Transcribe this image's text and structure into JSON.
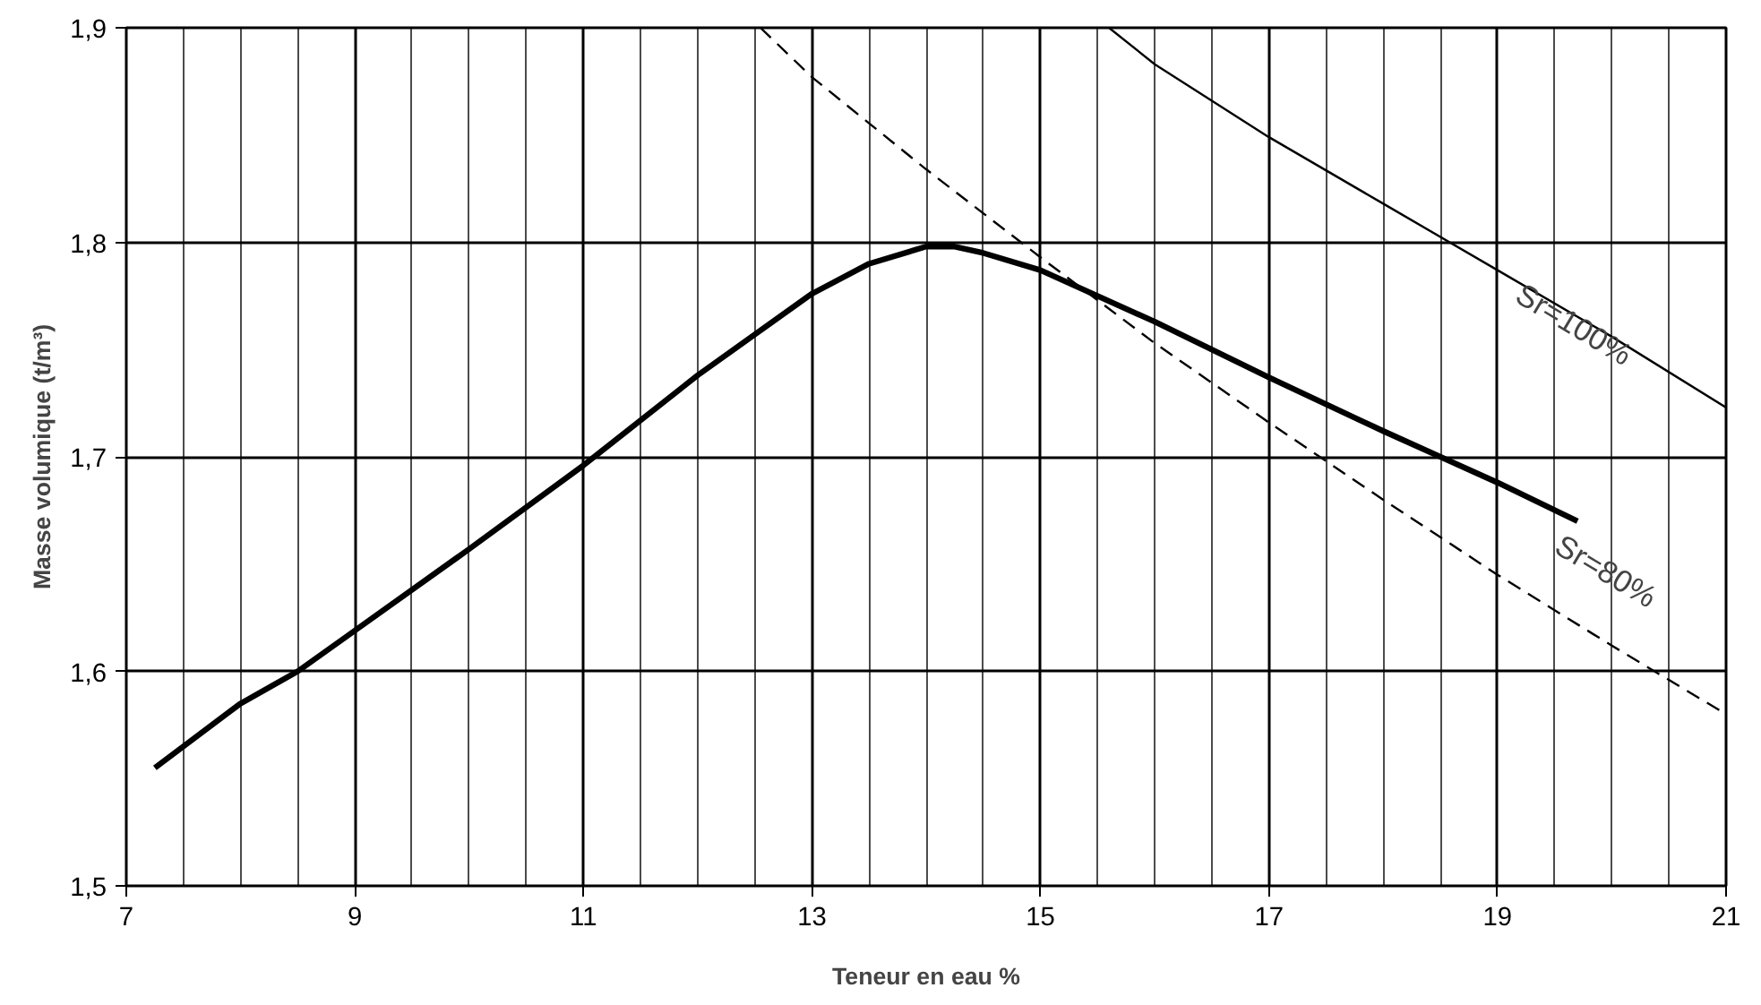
{
  "chart_data": {
    "type": "line",
    "xlabel": "Teneur en eau %",
    "ylabel": "Masse volumique (t/m³)",
    "xlim": [
      7,
      21
    ],
    "ylim": [
      1.5,
      1.9
    ],
    "xticks": [
      7,
      9,
      11,
      13,
      15,
      17,
      19,
      21
    ],
    "yticks": [
      {
        "value": 1.5,
        "label": "1,5"
      },
      {
        "value": 1.6,
        "label": "1,6"
      },
      {
        "value": 1.7,
        "label": "1,7"
      },
      {
        "value": 1.8,
        "label": "1,8"
      },
      {
        "value": 1.9,
        "label": "1,9"
      }
    ],
    "grid": true,
    "series": [
      {
        "color": "#000000",
        "line_style": "solid",
        "x": [
          7.25,
          8,
          8.5,
          9,
          10,
          11,
          12,
          13,
          13.5,
          14,
          14.25,
          14.5,
          15,
          16,
          17,
          18,
          19,
          19.7
        ],
        "values": [
          1.555,
          1.585,
          1.6,
          1.619,
          1.657,
          1.696,
          1.738,
          1.776,
          1.79,
          1.798,
          1.798,
          1.795,
          1.787,
          1.763,
          1.737,
          1.712,
          1.688,
          1.67
        ]
      },
      {
        "color": "#000000",
        "line_style": "dashed",
        "x": [
          12.55,
          13,
          14,
          15,
          16,
          17,
          18,
          19,
          20,
          21
        ],
        "values": [
          1.9,
          1.877,
          1.834,
          1.793,
          1.753,
          1.716,
          1.68,
          1.645,
          1.612,
          1.58
        ]
      },
      {
        "color": "#000000",
        "line_style": "solid",
        "x": [
          15.6,
          16,
          17,
          18,
          19,
          20,
          21
        ],
        "values": [
          1.9,
          1.883,
          1.849,
          1.818,
          1.787,
          1.756,
          1.723
        ]
      }
    ],
    "annotations": [
      "Sr=100%",
      "Sr=80%"
    ]
  }
}
